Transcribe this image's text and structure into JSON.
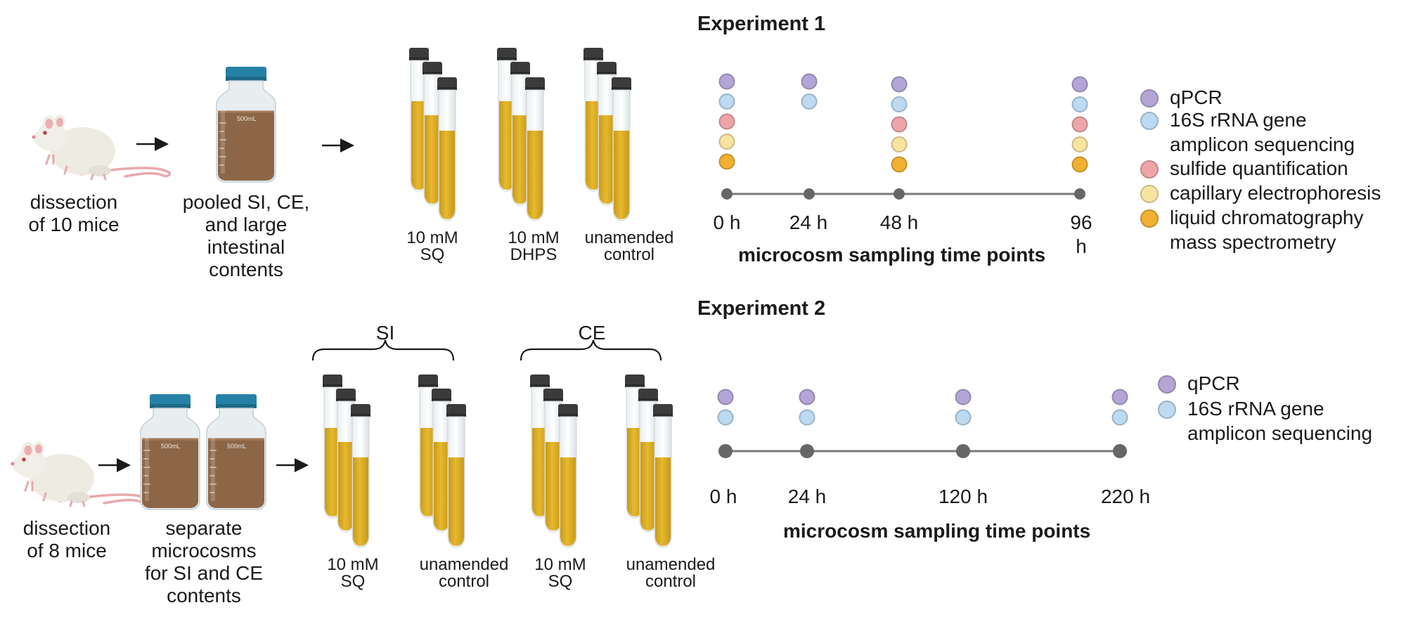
{
  "colors": {
    "qpcr": "#b3a6d6",
    "rrna": "#bcdaf2",
    "sulfide": "#eea5aa",
    "capillary": "#f8e3a1",
    "lcms": "#f0b131",
    "timeline": "#7a7a7a",
    "liquid": "#e3b52a",
    "bottle_cap": "#2581a5",
    "bottle_content": "#8c6647"
  },
  "legend_keys": [
    "qpcr",
    "rrna",
    "sulfide",
    "capillary",
    "lcms"
  ],
  "legend_text": {
    "qpcr": "qPCR",
    "rrna": "16S rRNA gene\namplicon sequencing",
    "sulfide": "sulfide quantification",
    "capillary": "capillary electrophoresis",
    "lcms": "liquid chromatography\nmass spectrometry"
  },
  "bottle_text": "500mL",
  "exp1": {
    "title": "Experiment 1",
    "dissection": "dissection\nof 10 mice",
    "pooled": "pooled SI, CE,\nand large\nintestinal\ncontents",
    "tubes": [
      "10 mM\nSQ",
      "10 mM\nDHPS",
      "unamended\ncontrol"
    ],
    "timeline_title": "microcosm sampling time points",
    "ticks": [
      "0 h",
      "24 h",
      "48 h",
      "96\nh"
    ],
    "sampling": [
      [
        "qpcr",
        "rrna",
        "sulfide",
        "capillary",
        "lcms"
      ],
      [
        "qpcr",
        "rrna"
      ],
      [
        "qpcr",
        "rrna",
        "sulfide",
        "capillary",
        "lcms"
      ],
      [
        "qpcr",
        "rrna",
        "sulfide",
        "capillary",
        "lcms"
      ]
    ]
  },
  "exp2": {
    "title": "Experiment 2",
    "dissection": "dissection\nof 8 mice",
    "separate": "separate\nmicrocosms\nfor SI and CE\ncontents",
    "brackets": [
      "SI",
      "CE"
    ],
    "tubes": [
      "10 mM\nSQ",
      "unamended\ncontrol",
      "10 mM\nSQ",
      "unamended\ncontrol"
    ],
    "timeline_title": "microcosm sampling time points",
    "ticks": [
      "0 h",
      "24 h",
      "120 h",
      "220 h"
    ],
    "sampling": [
      [
        "qpcr",
        "rrna"
      ],
      [
        "qpcr",
        "rrna"
      ],
      [
        "qpcr",
        "rrna"
      ],
      [
        "qpcr",
        "rrna"
      ]
    ],
    "legend_keys": [
      "qpcr",
      "rrna"
    ]
  }
}
